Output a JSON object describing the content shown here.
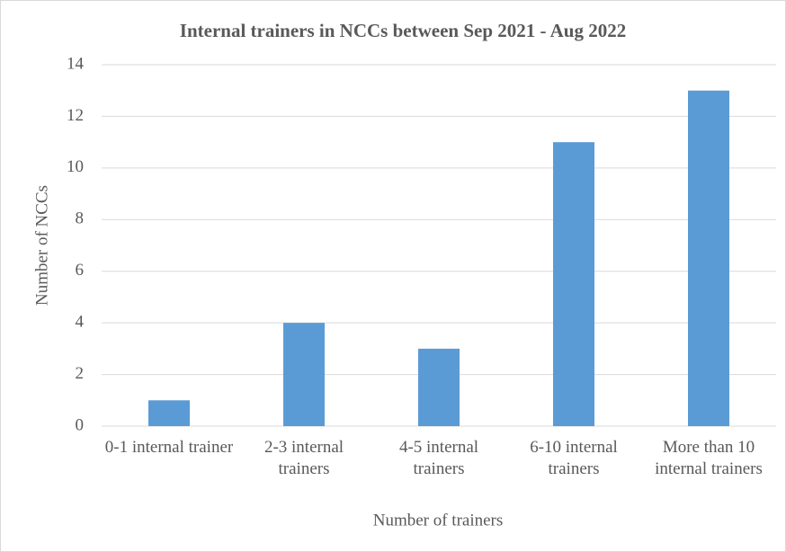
{
  "chart_data": {
    "type": "bar",
    "title": "Internal trainers in NCCs between Sep 2021 - Aug 2022",
    "x_label": "Number of trainers",
    "y_label": "Number of NCCs",
    "categories": [
      "0-1 internal trainer",
      "2-3 internal trainers",
      "4-5 internal trainers",
      "6-10 internal trainers",
      "More than 10 internal trainers"
    ],
    "values": [
      1,
      4,
      3,
      11,
      13
    ],
    "color": "#5b9bd5",
    "ylim": [
      0,
      14
    ],
    "yticks": [
      0,
      2,
      4,
      6,
      8,
      10,
      12,
      14
    ],
    "grid": true
  }
}
